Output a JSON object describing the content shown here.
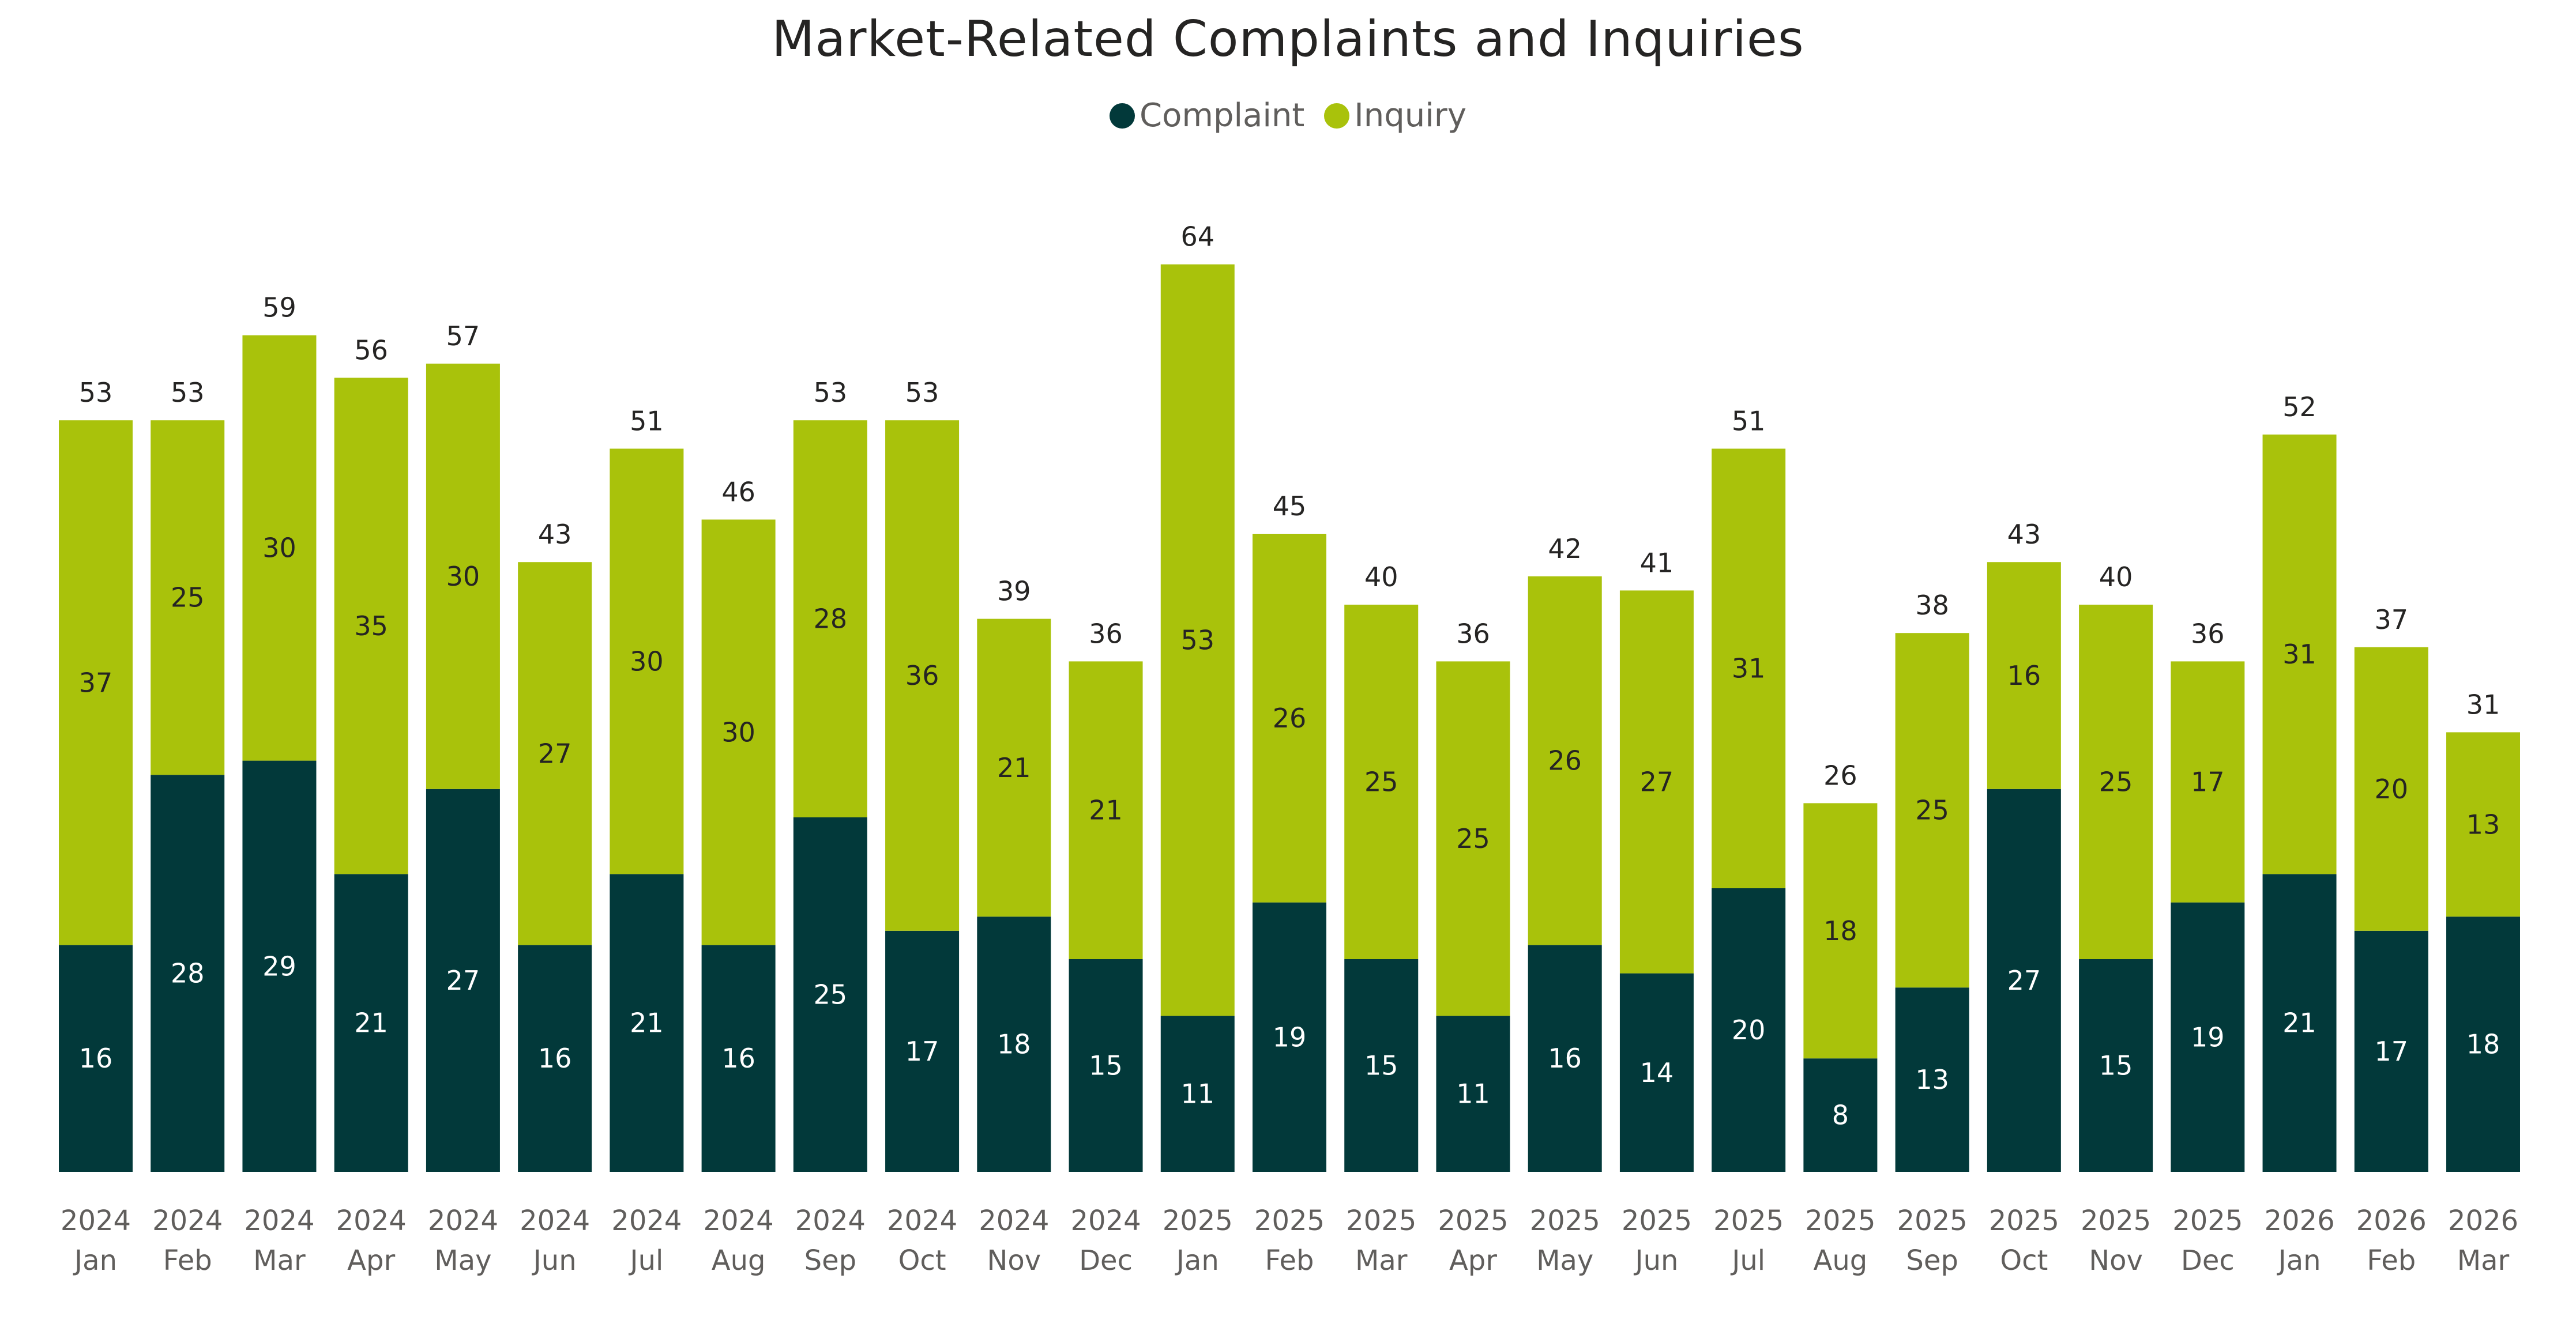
{
  "chart_data": {
    "type": "bar",
    "stacked": true,
    "title": "Market-Related Complaints and Inquiries",
    "legend_position": "top-center",
    "grid": false,
    "categories": [
      [
        "2024",
        "Jan"
      ],
      [
        "2024",
        "Feb"
      ],
      [
        "2024",
        "Mar"
      ],
      [
        "2024",
        "Apr"
      ],
      [
        "2024",
        "May"
      ],
      [
        "2024",
        "Jun"
      ],
      [
        "2024",
        "Jul"
      ],
      [
        "2024",
        "Aug"
      ],
      [
        "2024",
        "Sep"
      ],
      [
        "2024",
        "Oct"
      ],
      [
        "2024",
        "Nov"
      ],
      [
        "2024",
        "Dec"
      ],
      [
        "2025",
        "Jan"
      ],
      [
        "2025",
        "Feb"
      ],
      [
        "2025",
        "Mar"
      ],
      [
        "2025",
        "Apr"
      ],
      [
        "2025",
        "May"
      ],
      [
        "2025",
        "Jun"
      ],
      [
        "2025",
        "Jul"
      ],
      [
        "2025",
        "Aug"
      ],
      [
        "2025",
        "Sep"
      ],
      [
        "2025",
        "Oct"
      ],
      [
        "2025",
        "Nov"
      ],
      [
        "2025",
        "Dec"
      ],
      [
        "2026",
        "Jan"
      ],
      [
        "2026",
        "Feb"
      ],
      [
        "2026",
        "Mar"
      ]
    ],
    "series": [
      {
        "name": "Complaint",
        "color": "#02393a",
        "label_color": "#ffffff",
        "values": [
          16,
          28,
          29,
          21,
          27,
          16,
          21,
          16,
          25,
          17,
          18,
          15,
          11,
          19,
          15,
          11,
          16,
          14,
          20,
          8,
          13,
          27,
          15,
          19,
          21,
          17,
          18
        ]
      },
      {
        "name": "Inquiry",
        "color": "#a9c20b",
        "label_color": "#252423",
        "values": [
          37,
          25,
          30,
          35,
          30,
          27,
          30,
          30,
          28,
          36,
          21,
          21,
          53,
          26,
          25,
          25,
          26,
          27,
          31,
          18,
          25,
          16,
          25,
          17,
          31,
          20,
          13
        ]
      }
    ],
    "totals": [
      53,
      53,
      59,
      56,
      57,
      43,
      51,
      46,
      53,
      53,
      39,
      36,
      64,
      45,
      40,
      36,
      42,
      41,
      51,
      26,
      38,
      43,
      40,
      36,
      52,
      37,
      31
    ],
    "ylim": [
      0,
      64
    ]
  }
}
